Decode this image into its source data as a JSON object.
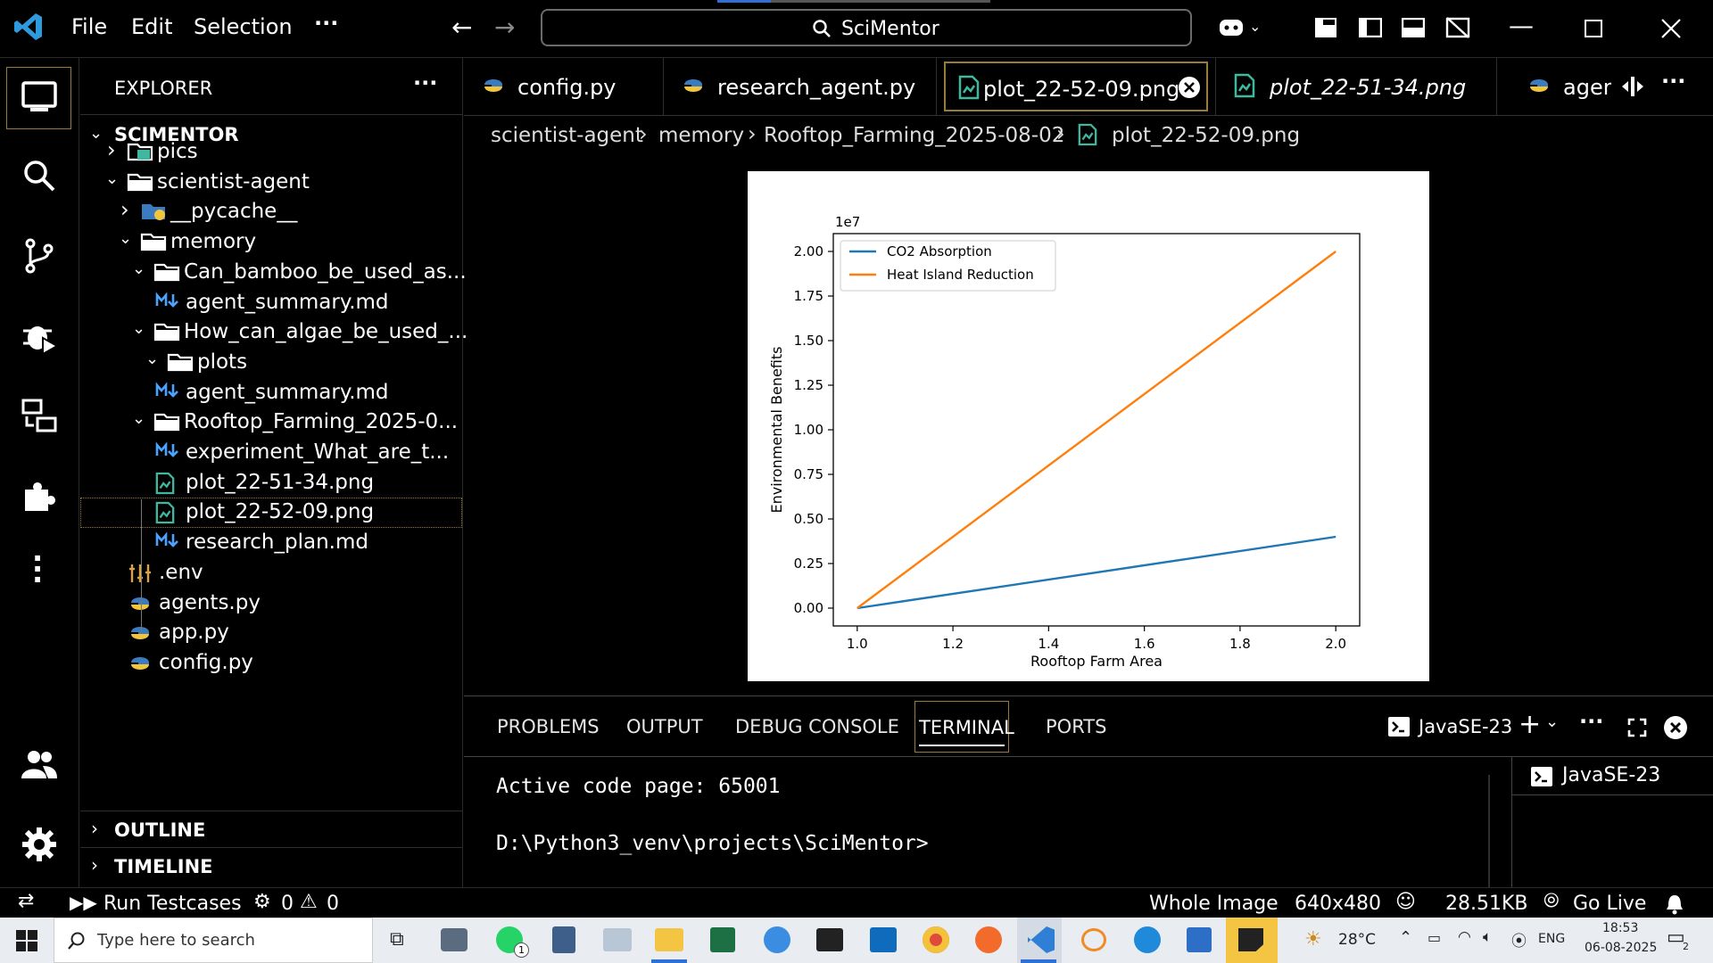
{
  "titlebar": {
    "menu": [
      "File",
      "Edit",
      "Selection"
    ],
    "more": "···",
    "search_text": "SciMentor"
  },
  "explorer": {
    "header": "EXPLORER",
    "more": "···",
    "root": "SCIMENTOR",
    "items": [
      {
        "label": "pics"
      },
      {
        "label": "scientist-agent"
      },
      {
        "label": "__pycache__"
      },
      {
        "label": "memory"
      },
      {
        "label": "Can_bamboo_be_used_as..."
      },
      {
        "label": "agent_summary.md"
      },
      {
        "label": "How_can_algae_be_used_..."
      },
      {
        "label": "plots"
      },
      {
        "label": "agent_summary.md"
      },
      {
        "label": "Rooftop_Farming_2025-0..."
      },
      {
        "label": "experiment_What_are_t..."
      },
      {
        "label": "plot_22-51-34.png"
      },
      {
        "label": "plot_22-52-09.png"
      },
      {
        "label": "research_plan.md"
      },
      {
        "label": ".env"
      },
      {
        "label": "agents.py"
      },
      {
        "label": "app.py"
      },
      {
        "label": "config.py"
      }
    ],
    "outline": "OUTLINE",
    "timeline": "TIMELINE"
  },
  "tabs": [
    {
      "label": "config.py"
    },
    {
      "label": "research_agent.py"
    },
    {
      "label": "plot_22-52-09.png"
    },
    {
      "label": "plot_22-51-34.png"
    },
    {
      "label": "agents"
    }
  ],
  "breadcrumb": [
    "scientist-agent",
    "memory",
    "Rooftop_Farming_2025-08-02",
    "plot_22-52-09.png"
  ],
  "chart_data": {
    "type": "line",
    "x": [
      1.0,
      2.0
    ],
    "series": [
      {
        "name": "CO2 Absorption",
        "color": "#1f77b4",
        "values": [
          0,
          4000000
        ]
      },
      {
        "name": "Heat Island Reduction",
        "color": "#ff7f0e",
        "values": [
          0,
          20000000
        ]
      }
    ],
    "xlabel": "Rooftop Farm Area",
    "ylabel": "Environmental Benefits",
    "offset_label": "1e7",
    "xlim": [
      0.95,
      2.05
    ],
    "ylim": [
      -1000000,
      21000000
    ],
    "xticks": [
      "1.0",
      "1.2",
      "1.4",
      "1.6",
      "1.8",
      "2.0"
    ],
    "yticks": [
      "0.00",
      "0.25",
      "0.50",
      "0.75",
      "1.00",
      "1.25",
      "1.50",
      "1.75",
      "2.00"
    ],
    "legend": "top-left",
    "grid": false
  },
  "panel": {
    "tabs": [
      "PROBLEMS",
      "OUTPUT",
      "DEBUG CONSOLE",
      "TERMINAL",
      "PORTS"
    ],
    "terminal_name": "JavaSE-23",
    "terminal_list_item": "JavaSE-23",
    "lines": [
      "Active code page: 65001",
      "D:\\Python3_venv\\projects\\SciMentor>"
    ]
  },
  "status": {
    "run": "Run Testcases",
    "errors": "0",
    "warnings": "0",
    "image_mode": "Whole Image",
    "dimensions": "640x480",
    "size": "28.51KB",
    "live": "Go Live"
  },
  "taskbar": {
    "search_placeholder": "Type here to search",
    "temp": "28°C",
    "lang": "ENG",
    "time": "18:53",
    "date": "06-08-2025",
    "badge": "1",
    "notif": "2"
  }
}
